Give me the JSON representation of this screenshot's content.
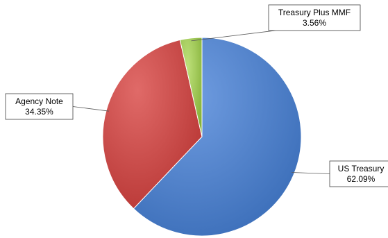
{
  "chart_data": {
    "type": "pie",
    "slices": [
      {
        "label": "US Treasury",
        "value_label": "62.09%",
        "value": 62.09,
        "color": "#4a7ec9"
      },
      {
        "label": "Agency Note",
        "value_label": "34.35%",
        "value": 34.35,
        "color": "#cc4543"
      },
      {
        "label": "Treasury Plus MMF",
        "value_label": "3.56%",
        "value": 3.56,
        "color": "#9bc64a"
      }
    ],
    "start": "12 o'clock",
    "direction": "clockwise",
    "legend": "none",
    "data_labels": "callout boxes"
  }
}
